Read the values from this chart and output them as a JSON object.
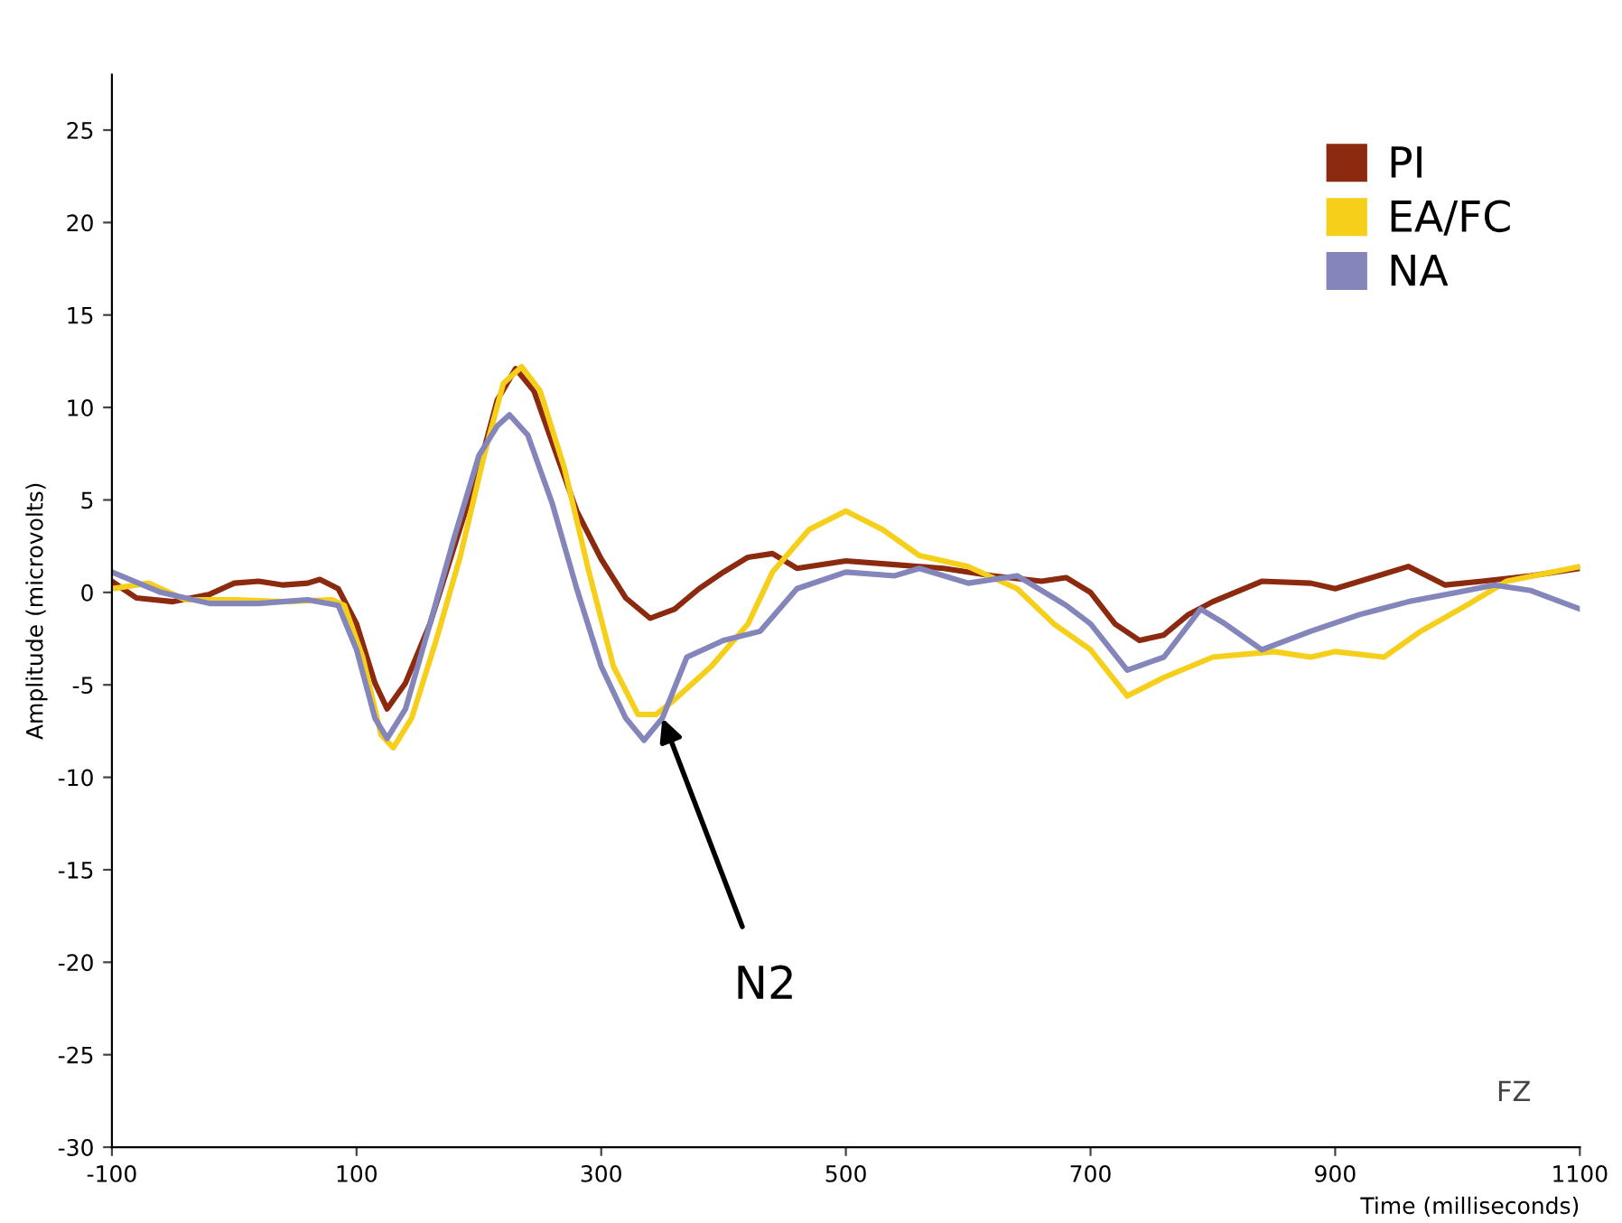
{
  "chart_data": {
    "type": "line",
    "xlabel": "Time (milliseconds)",
    "ylabel": "Amplitude (microvolts)",
    "xlim": [
      -100,
      1100
    ],
    "xticks": [
      -100,
      100,
      300,
      500,
      700,
      900,
      1100
    ],
    "ylim": [
      -30,
      28
    ],
    "yticks": [
      -30,
      -25,
      -20,
      -15,
      -10,
      -5,
      0,
      5,
      10,
      15,
      20,
      25
    ],
    "grid": false,
    "legend": "top right",
    "marker": "none",
    "line_style": "solid",
    "annotations": [
      {
        "text": "N2",
        "x": 350,
        "y": -6.8
      },
      "FZ"
    ],
    "series": [
      {
        "name": "PI",
        "color": "#8b2a0e",
        "x": [
          -100,
          -80,
          -50,
          -20,
          0,
          20,
          40,
          60,
          70,
          85,
          100,
          115,
          125,
          140,
          160,
          180,
          200,
          215,
          230,
          245,
          260,
          280,
          300,
          320,
          340,
          360,
          380,
          400,
          420,
          440,
          460,
          500,
          540,
          580,
          620,
          660,
          680,
          700,
          720,
          740,
          760,
          780,
          800,
          840,
          880,
          900,
          930,
          960,
          990,
          1020,
          1060,
          1100
        ],
        "values": [
          0.6,
          -0.3,
          -0.5,
          -0.1,
          0.5,
          0.6,
          0.4,
          0.5,
          0.7,
          0.2,
          -1.7,
          -4.9,
          -6.3,
          -4.9,
          -1.7,
          2.5,
          6.7,
          10.4,
          12.1,
          10.9,
          8.1,
          4.4,
          1.8,
          -0.3,
          -1.4,
          -0.9,
          0.2,
          1.1,
          1.9,
          2.1,
          1.3,
          1.7,
          1.5,
          1.3,
          0.9,
          0.6,
          0.8,
          0,
          -1.7,
          -2.6,
          -2.3,
          -1.2,
          -0.5,
          0.6,
          0.5,
          0.2,
          0.8,
          1.4,
          0.4,
          0.6,
          0.9,
          1.3
        ]
      },
      {
        "name": "EA/FC",
        "color": "#f5cf1a",
        "x": [
          -100,
          -70,
          -40,
          0,
          40,
          80,
          90,
          105,
          120,
          130,
          145,
          165,
          185,
          205,
          220,
          235,
          250,
          270,
          290,
          310,
          330,
          345,
          360,
          390,
          420,
          440,
          470,
          500,
          530,
          560,
          600,
          640,
          670,
          700,
          730,
          760,
          800,
          850,
          880,
          900,
          940,
          970,
          1010,
          1040,
          1100
        ],
        "values": [
          0.2,
          0.5,
          -0.4,
          -0.4,
          -0.5,
          -0.4,
          -0.7,
          -3.5,
          -7.7,
          -8.4,
          -6.8,
          -2.6,
          2,
          7.6,
          11.3,
          12.2,
          10.9,
          6.7,
          1.1,
          -4,
          -6.6,
          -6.6,
          -5.8,
          -4,
          -1.7,
          1.1,
          3.4,
          4.4,
          3.4,
          2,
          1.4,
          0.2,
          -1.7,
          -3.1,
          -5.6,
          -4.6,
          -3.5,
          -3.2,
          -3.5,
          -3.2,
          -3.5,
          -2.1,
          -0.6,
          0.6,
          1.4
        ]
      },
      {
        "name": "NA",
        "color": "#8486bb",
        "x": [
          -100,
          -60,
          -20,
          20,
          60,
          85,
          100,
          115,
          125,
          140,
          160,
          180,
          200,
          215,
          225,
          240,
          260,
          280,
          300,
          320,
          335,
          350,
          370,
          400,
          430,
          460,
          500,
          540,
          560,
          600,
          640,
          680,
          700,
          730,
          760,
          790,
          810,
          840,
          880,
          920,
          960,
          1000,
          1030,
          1060,
          1100
        ],
        "values": [
          1.1,
          0,
          -0.6,
          -0.6,
          -0.4,
          -0.7,
          -3.1,
          -6.8,
          -7.9,
          -6.3,
          -1.7,
          3,
          7.4,
          9,
          9.6,
          8.5,
          4.8,
          0.2,
          -4,
          -6.8,
          -8,
          -6.8,
          -3.5,
          -2.6,
          -2.1,
          0.2,
          1.1,
          0.9,
          1.3,
          0.5,
          0.9,
          -0.7,
          -1.7,
          -4.2,
          -3.5,
          -0.9,
          -1.7,
          -3.1,
          -2.1,
          -1.2,
          -0.5,
          0,
          0.4,
          0.1,
          -0.9
        ]
      }
    ]
  }
}
